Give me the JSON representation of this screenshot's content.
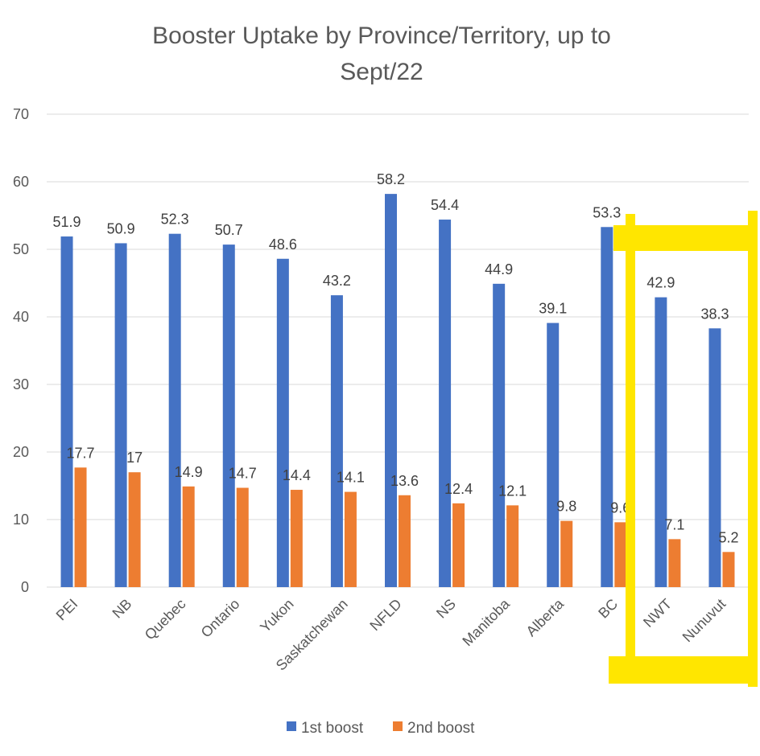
{
  "chart_data": {
    "type": "bar",
    "title_lines": [
      "Booster Uptake by Province/Territory, up to",
      "Sept/22"
    ],
    "categories": [
      "PEI",
      "NB",
      "Quebec",
      "Ontario",
      "Yukon",
      "Saskatchewan",
      "NFLD",
      "NS",
      "Manitoba",
      "Alberta",
      "BC",
      "NWT",
      "Nunuvut"
    ],
    "series": [
      {
        "name": "1st boost",
        "color": "#4472c4",
        "values": [
          51.9,
          50.9,
          52.3,
          50.7,
          48.6,
          43.2,
          58.2,
          54.4,
          44.9,
          39.1,
          53.3,
          42.9,
          38.3
        ]
      },
      {
        "name": "2nd boost",
        "color": "#ed7d31",
        "values": [
          17.7,
          17,
          14.9,
          14.7,
          14.4,
          14.1,
          13.6,
          12.4,
          12.1,
          9.8,
          9.6,
          7.1,
          5.2
        ]
      }
    ],
    "data_labels": {
      "1st boost": [
        "51.9",
        "50.9",
        "52.3",
        "50.7",
        "48.6",
        "43.2",
        "58.2",
        "54.4",
        "44.9",
        "39.1",
        "53.3",
        "42.9",
        "38.3"
      ],
      "2nd boost": [
        "17.7",
        "17",
        "14.9",
        "14.7",
        "14.4",
        "14.1",
        "13.6",
        "12.4",
        "12.1",
        "9.8",
        "9.6",
        "7.1",
        "5.2"
      ]
    },
    "ylim": [
      0,
      70
    ],
    "yticks": [
      0,
      10,
      20,
      30,
      40,
      50,
      60,
      70
    ],
    "ytick_labels": [
      "0",
      "10",
      "20",
      "30",
      "40",
      "50",
      "60",
      "70"
    ],
    "grid": true,
    "legend_position": "bottom",
    "highlight": {
      "shape": "hand-drawn rectangle",
      "color": "#ffe600",
      "around": [
        "NWT",
        "Nunuvut"
      ]
    }
  }
}
